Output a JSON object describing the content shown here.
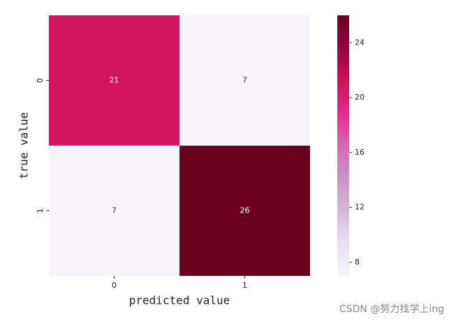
{
  "chart_data": {
    "type": "heatmap",
    "x_categories": [
      "0",
      "1"
    ],
    "y_categories": [
      "0",
      "1"
    ],
    "values": [
      [
        21,
        7
      ],
      [
        7,
        26
      ]
    ],
    "xlabel": "predicted value",
    "ylabel": "true value",
    "colorbar_lim": [
      7,
      26
    ],
    "colorbar_ticks": [
      8,
      12,
      16,
      20,
      24
    ],
    "colormap": [
      "#f7f4f9",
      "#e7e1ef",
      "#d4b9da",
      "#c994c7",
      "#df65b0",
      "#e7298a",
      "#ce1256",
      "#980043",
      "#67001f"
    ]
  },
  "watermark": "CSDN @努力找学上ing"
}
